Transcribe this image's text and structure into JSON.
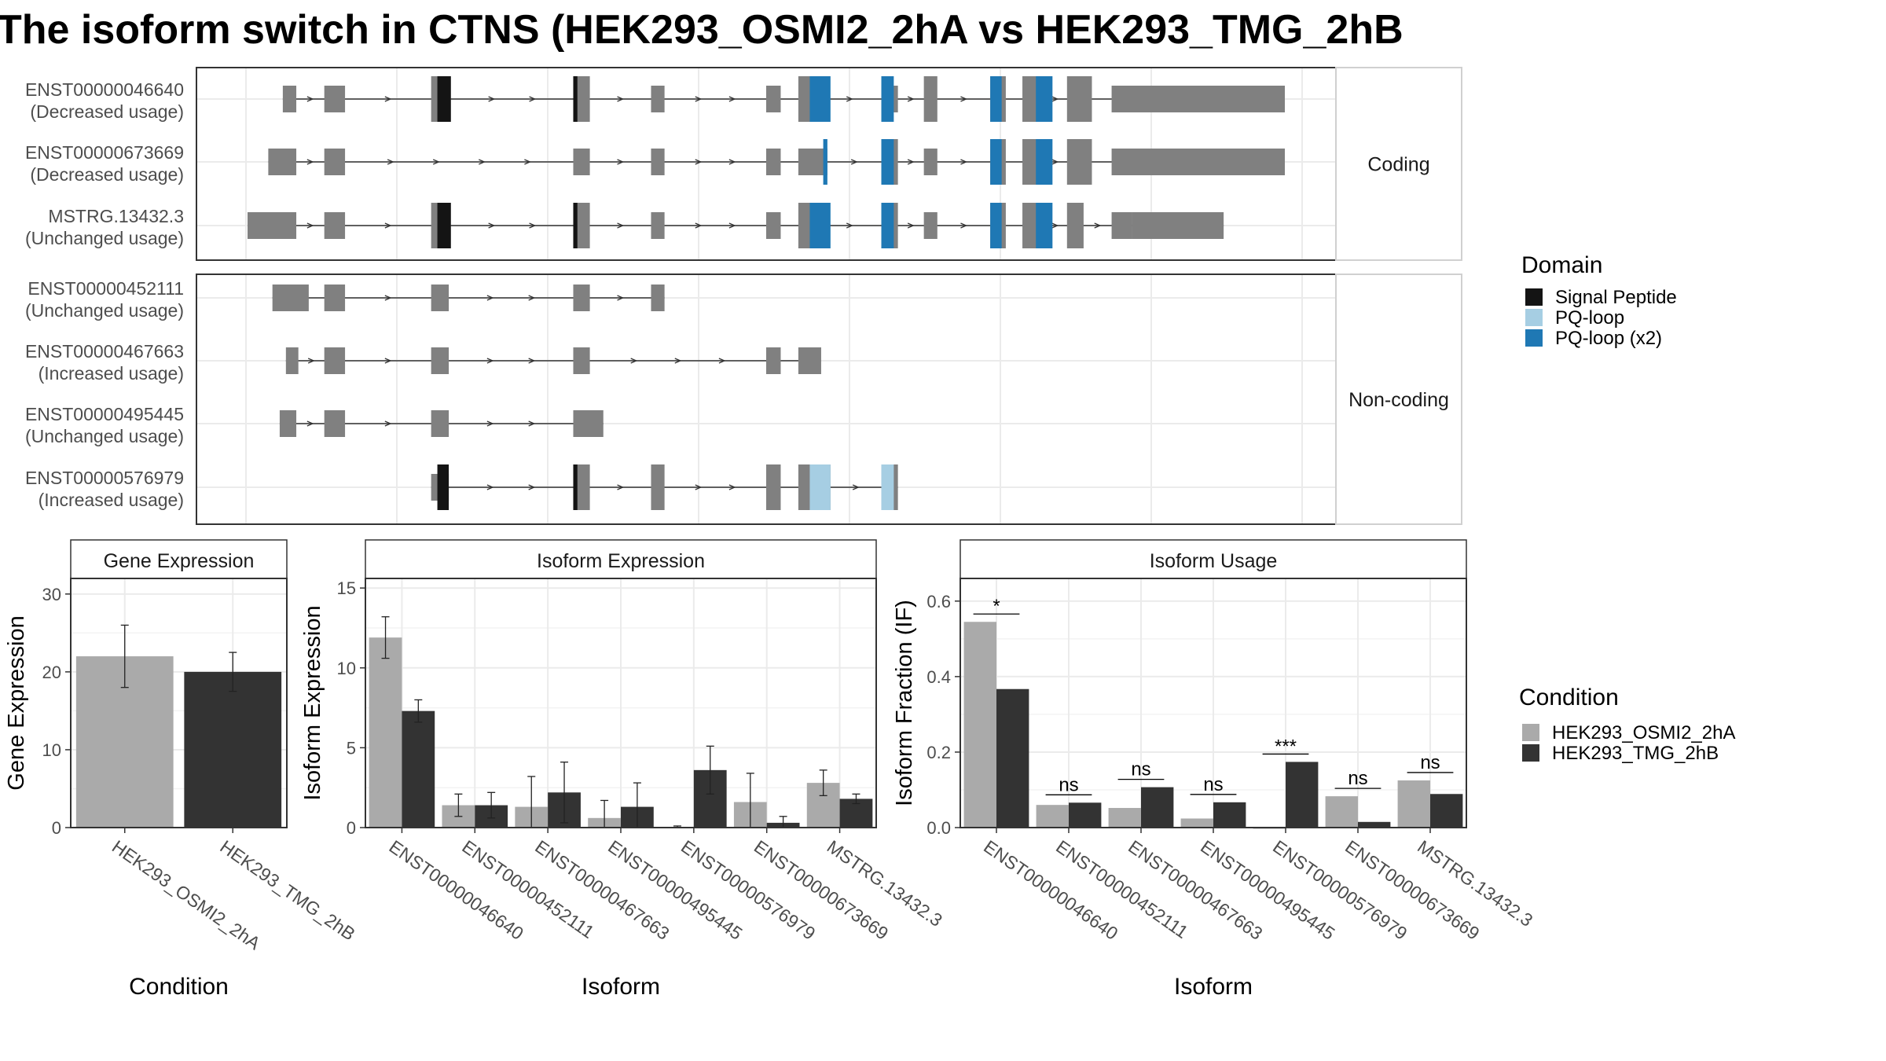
{
  "title": "The isoform switch in CTNS (HEK293_OSMI2_2hA vs HEK293_TMG_2hB",
  "colors": {
    "exon": "#808080",
    "signal_peptide": "#141414",
    "pq_loop": "#a6cee3",
    "pq_loop_x2": "#1f78b4",
    "cond_a": "#aaaaaa",
    "cond_b": "#333333",
    "grid": "#ebebeb"
  },
  "transcript_panels": [
    {
      "label": "Coding",
      "transcripts": [
        {
          "id": "ENST00000046640",
          "usage": "(Decreased usage)",
          "exons": [
            [
              0.034,
              0.047
            ],
            [
              0.074,
              0.094
            ],
            [
              0.177,
              0.196
            ],
            [
              0.314,
              0.33
            ],
            [
              0.389,
              0.402
            ],
            [
              0.5,
              0.514
            ],
            [
              0.531,
              0.55
            ],
            [
              0.611,
              0.627
            ],
            [
              0.652,
              0.665
            ],
            [
              0.716,
              0.731
            ],
            [
              0.747,
              0.767
            ],
            [
              0.79,
              0.814
            ],
            [
              0.833,
              1.0
            ]
          ],
          "exon_heights": [
            0.6,
            0.6,
            1,
            1,
            0.6,
            0.6,
            1,
            0.6,
            1,
            1,
            1,
            1,
            0.6
          ],
          "domains": [
            {
              "type": "signal_peptide",
              "range": [
                0.183,
                0.196
              ]
            },
            {
              "type": "signal_peptide",
              "range": [
                0.314,
                0.318
              ]
            },
            {
              "type": "pq_loop_x2",
              "range": [
                0.542,
                0.562
              ]
            },
            {
              "type": "pq_loop_x2",
              "range": [
                0.611,
                0.623
              ]
            },
            {
              "type": "pq_loop_x2",
              "range": [
                0.716,
                0.727
              ]
            },
            {
              "type": "pq_loop_x2",
              "range": [
                0.76,
                0.776
              ]
            }
          ]
        },
        {
          "id": "ENST00000673669",
          "usage": "(Decreased usage)",
          "exons": [
            [
              0.02,
              0.047
            ],
            [
              0.074,
              0.094
            ],
            [
              0.314,
              0.33
            ],
            [
              0.389,
              0.402
            ],
            [
              0.5,
              0.514
            ],
            [
              0.531,
              0.559
            ],
            [
              0.611,
              0.627
            ],
            [
              0.652,
              0.665
            ],
            [
              0.716,
              0.731
            ],
            [
              0.747,
              0.767
            ],
            [
              0.79,
              0.814
            ],
            [
              0.833,
              1.0
            ]
          ],
          "exon_heights": [
            0.6,
            0.6,
            0.6,
            0.6,
            0.6,
            0.6,
            1,
            0.6,
            1,
            1,
            1,
            0.6
          ],
          "domains": [
            {
              "type": "pq_loop_x2",
              "range": [
                0.555,
                0.559
              ]
            },
            {
              "type": "pq_loop_x2",
              "range": [
                0.611,
                0.623
              ]
            },
            {
              "type": "pq_loop_x2",
              "range": [
                0.716,
                0.727
              ]
            },
            {
              "type": "pq_loop_x2",
              "range": [
                0.76,
                0.776
              ]
            }
          ]
        },
        {
          "id": "MSTRG.13432.3",
          "usage": "(Unchanged usage)",
          "exons": [
            [
              0.0,
              0.047
            ],
            [
              0.074,
              0.094
            ],
            [
              0.177,
              0.196
            ],
            [
              0.314,
              0.33
            ],
            [
              0.389,
              0.402
            ],
            [
              0.5,
              0.514
            ],
            [
              0.531,
              0.55
            ],
            [
              0.611,
              0.627
            ],
            [
              0.652,
              0.665
            ],
            [
              0.716,
              0.731
            ],
            [
              0.747,
              0.767
            ],
            [
              0.79,
              0.806
            ],
            [
              0.833,
              0.853
            ],
            [
              0.853,
              0.941
            ]
          ],
          "exon_heights": [
            0.6,
            0.6,
            1,
            1,
            0.6,
            0.6,
            1,
            1,
            0.6,
            1,
            1,
            1,
            0.6,
            0.6
          ],
          "domains": [
            {
              "type": "signal_peptide",
              "range": [
                0.183,
                0.196
              ]
            },
            {
              "type": "signal_peptide",
              "range": [
                0.314,
                0.318
              ]
            },
            {
              "type": "pq_loop_x2",
              "range": [
                0.542,
                0.562
              ]
            },
            {
              "type": "pq_loop_x2",
              "range": [
                0.611,
                0.623
              ]
            },
            {
              "type": "pq_loop_x2",
              "range": [
                0.716,
                0.727
              ]
            },
            {
              "type": "pq_loop_x2",
              "range": [
                0.76,
                0.776
              ]
            }
          ]
        }
      ]
    },
    {
      "label": "Non-coding",
      "transcripts": [
        {
          "id": "ENST00000452111",
          "usage": "(Unchanged usage)",
          "exons": [
            [
              0.024,
              0.059
            ],
            [
              0.074,
              0.094
            ],
            [
              0.177,
              0.194
            ],
            [
              0.314,
              0.33
            ],
            [
              0.389,
              0.402
            ]
          ],
          "exon_heights": [
            0.6,
            0.6,
            0.6,
            0.6,
            0.6
          ],
          "domains": []
        },
        {
          "id": "ENST00000467663",
          "usage": "(Increased usage)",
          "exons": [
            [
              0.037,
              0.049
            ],
            [
              0.074,
              0.094
            ],
            [
              0.177,
              0.194
            ],
            [
              0.314,
              0.33
            ],
            [
              0.5,
              0.514
            ],
            [
              0.531,
              0.553
            ]
          ],
          "exon_heights": [
            0.6,
            0.6,
            0.6,
            0.6,
            0.6,
            0.6
          ],
          "domains": []
        },
        {
          "id": "ENST00000495445",
          "usage": "(Unchanged usage)",
          "exons": [
            [
              0.031,
              0.047
            ],
            [
              0.074,
              0.094
            ],
            [
              0.177,
              0.194
            ],
            [
              0.314,
              0.343
            ]
          ],
          "exon_heights": [
            0.6,
            0.6,
            0.6,
            0.6
          ],
          "domains": []
        },
        {
          "id": "ENST00000576979",
          "usage": "(Increased usage)",
          "exons": [
            [
              0.177,
              0.194
            ],
            [
              0.314,
              0.33
            ],
            [
              0.389,
              0.402
            ],
            [
              0.5,
              0.514
            ],
            [
              0.531,
              0.562
            ],
            [
              0.611,
              0.627
            ]
          ],
          "exon_heights": [
            0.6,
            1,
            1,
            1,
            1,
            1
          ],
          "domains": [
            {
              "type": "signal_peptide",
              "range": [
                0.183,
                0.194
              ]
            },
            {
              "type": "signal_peptide",
              "range": [
                0.314,
                0.318
              ]
            },
            {
              "type": "pq_loop",
              "range": [
                0.542,
                0.562
              ]
            },
            {
              "type": "pq_loop",
              "range": [
                0.611,
                0.623
              ]
            }
          ]
        }
      ]
    }
  ],
  "domain_legend": {
    "title": "Domain",
    "items": [
      {
        "label": "Signal Peptide",
        "color": "#141414"
      },
      {
        "label": "PQ-loop",
        "color": "#a6cee3"
      },
      {
        "label": "PQ-loop (x2)",
        "color": "#1f78b4"
      }
    ]
  },
  "condition_legend": {
    "title": "Condition",
    "items": [
      {
        "label": "HEK293_OSMI2_2hA",
        "color": "#aaaaaa"
      },
      {
        "label": "HEK293_TMG_2hB",
        "color": "#333333"
      }
    ]
  },
  "chart_data": [
    {
      "type": "bar",
      "title": "Gene Expression",
      "xlabel": "Condition",
      "ylabel": "Gene Expression",
      "ylim": [
        0,
        32
      ],
      "yticks": [
        0,
        10,
        20,
        30
      ],
      "categories": [
        "HEK293_OSMI2_2hA",
        "HEK293_TMG_2hB"
      ],
      "values": [
        22.0,
        20.0
      ],
      "errors": [
        [
          18.0,
          26.0
        ],
        [
          17.5,
          22.5
        ]
      ]
    },
    {
      "type": "bar",
      "title": "Isoform Expression",
      "xlabel": "Isoform",
      "ylabel": "Isoform Expression",
      "ylim": [
        0,
        15.6
      ],
      "yticks": [
        0,
        5,
        10,
        15
      ],
      "categories": [
        "ENST00000046640",
        "ENST00000452111",
        "ENST00000467663",
        "ENST00000495445",
        "ENST00000576979",
        "ENST00000673669",
        "MSTRG.13432.3"
      ],
      "series": [
        {
          "name": "HEK293_OSMI2_2hA",
          "values": [
            11.9,
            1.4,
            1.3,
            0.6,
            0.05,
            1.6,
            2.8
          ],
          "errors": [
            [
              10.6,
              13.2
            ],
            [
              0.7,
              2.1
            ],
            [
              0.0,
              3.2
            ],
            [
              0.0,
              1.7
            ],
            [
              0.0,
              0.1
            ],
            [
              0.0,
              3.4
            ],
            [
              2.0,
              3.6
            ]
          ]
        },
        {
          "name": "HEK293_TMG_2hB",
          "values": [
            7.3,
            1.4,
            2.2,
            1.3,
            3.6,
            0.3,
            1.8
          ],
          "errors": [
            [
              6.6,
              8.0
            ],
            [
              0.6,
              2.2
            ],
            [
              0.3,
              4.1
            ],
            [
              0.0,
              2.8
            ],
            [
              2.1,
              5.1
            ],
            [
              0.0,
              0.7
            ],
            [
              1.5,
              2.1
            ]
          ]
        }
      ]
    },
    {
      "type": "bar",
      "title": "Isoform Usage",
      "xlabel": "Isoform",
      "ylabel": "Isoform Fraction (IF)",
      "ylim": [
        0,
        0.66
      ],
      "yticks": [
        0.0,
        0.2,
        0.4,
        0.6
      ],
      "ytick_labels": [
        "0.0",
        "0.2",
        "0.4",
        "0.6"
      ],
      "categories": [
        "ENST00000046640",
        "ENST00000452111",
        "ENST00000467663",
        "ENST00000495445",
        "ENST00000576979",
        "ENST00000673669",
        "MSTRG.13432.3"
      ],
      "series": [
        {
          "name": "HEK293_OSMI2_2hA",
          "values": [
            0.545,
            0.06,
            0.052,
            0.024,
            0.0,
            0.083,
            0.125
          ]
        },
        {
          "name": "HEK293_TMG_2hB",
          "values": [
            0.367,
            0.066,
            0.107,
            0.067,
            0.174,
            0.015,
            0.089
          ]
        }
      ],
      "significance": [
        "*",
        "ns",
        "ns",
        "ns",
        "***",
        "ns",
        "ns"
      ]
    }
  ]
}
